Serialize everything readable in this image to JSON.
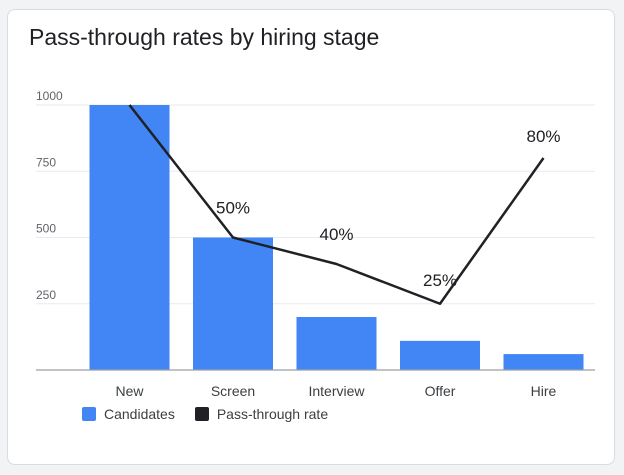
{
  "chart_data": {
    "type": "bar",
    "title": "Pass-through rates by hiring stage",
    "categories": [
      "New",
      "Screen",
      "Interview",
      "Offer",
      "Hire"
    ],
    "series": [
      {
        "name": "Candidates",
        "type": "bar",
        "values": [
          1000,
          500,
          200,
          110,
          60
        ],
        "color": "#4285f4"
      },
      {
        "name": "Pass-through rate",
        "type": "line",
        "values": [
          100,
          50,
          40,
          25,
          80
        ],
        "labels": [
          "",
          "50%",
          "40%",
          "25%",
          "80%"
        ],
        "color": "#202124"
      }
    ],
    "y_ticks": [
      "1000",
      "750",
      "500",
      "250"
    ],
    "ylim": [
      0,
      1000
    ],
    "grid": true,
    "legend_position": "bottom-left"
  }
}
